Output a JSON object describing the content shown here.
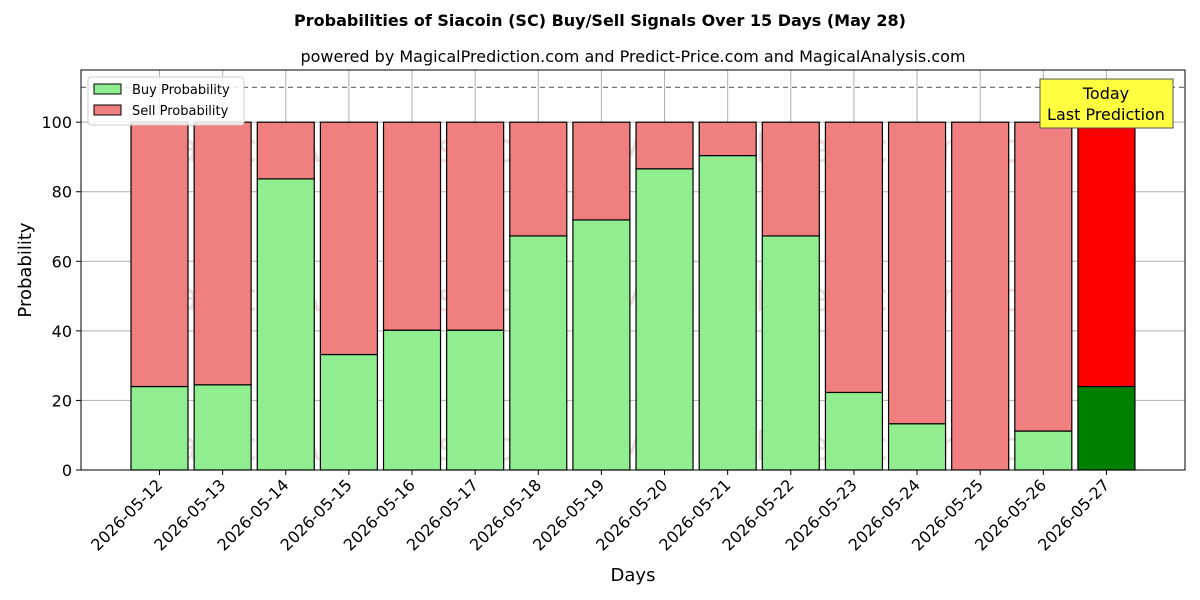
{
  "chart_data": {
    "type": "bar",
    "stacked": true,
    "title": "Probabilities of Siacoin (SC) Buy/Sell Signals Over 15 Days (May 28)",
    "subtitle": "powered by MagicalPrediction.com and Predict-Price.com and MagicalAnalysis.com",
    "xlabel": "Days",
    "ylabel": "Probability",
    "ylim": [
      0,
      115
    ],
    "yticks": [
      0,
      20,
      40,
      60,
      80,
      100
    ],
    "reference_line": 110,
    "grid": true,
    "legend_position": "top-left",
    "categories": [
      "2026-05-12",
      "2026-05-13",
      "2026-05-14",
      "2026-05-15",
      "2026-05-16",
      "2026-05-17",
      "2026-05-18",
      "2026-05-19",
      "2026-05-20",
      "2026-05-21",
      "2026-05-22",
      "2026-05-23",
      "2026-05-24",
      "2026-05-25",
      "2026-05-26",
      "2026-05-27"
    ],
    "series": [
      {
        "name": "Buy Probability",
        "color": "#90ee90",
        "highlight_color": "#008000",
        "values": [
          24,
          24.5,
          83.7,
          33.2,
          40.2,
          40.2,
          67.3,
          71.9,
          86.6,
          90.4,
          67.3,
          22.3,
          13.3,
          0,
          11.2,
          24
        ]
      },
      {
        "name": "Sell Probability",
        "color": "#f08080",
        "highlight_color": "#ff0000",
        "values": [
          76,
          75.5,
          16.3,
          66.8,
          59.8,
          59.8,
          32.7,
          28.1,
          13.4,
          9.6,
          32.7,
          77.7,
          86.7,
          100,
          88.8,
          76
        ]
      }
    ],
    "highlight_index": 15,
    "annotation": [
      "Today",
      "Last Prediction"
    ],
    "annotation_color": "#ffff40",
    "watermarks": [
      "MagicalAnalysis.com",
      "MagicalPrediction.com"
    ]
  }
}
